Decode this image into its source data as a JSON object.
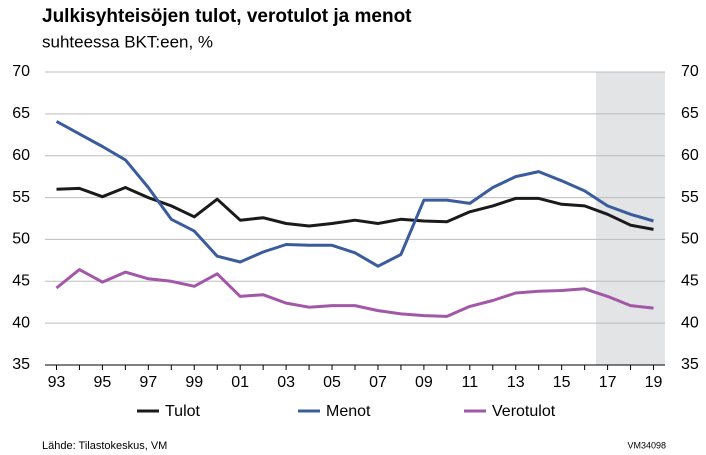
{
  "chart_data": {
    "type": "line",
    "title": "Julkisyhteisöjen tulot, verotulot ja menot",
    "subtitle": "suhteessa BKT:een, %",
    "source": "Lähde: Tilastokeskus, VM",
    "code": "VM34098",
    "categories": [
      "93",
      null,
      "95",
      null,
      "97",
      null,
      "99",
      null,
      "01",
      null,
      "03",
      null,
      "05",
      null,
      "07",
      null,
      "09",
      null,
      "11",
      null,
      "13",
      null,
      "15",
      null,
      "17",
      null,
      "19"
    ],
    "series": [
      {
        "name": "Tulot",
        "color": "#1a1a1a",
        "values": [
          56.0,
          56.1,
          55.1,
          56.2,
          55.0,
          54.0,
          52.7,
          54.8,
          52.3,
          52.6,
          51.9,
          51.6,
          51.9,
          52.3,
          51.9,
          52.4,
          52.2,
          52.1,
          53.3,
          54.0,
          54.9,
          54.9,
          54.2,
          54.0,
          53.0,
          51.7,
          51.2
        ]
      },
      {
        "name": "Menot",
        "color": "#3b5c9c",
        "values": [
          64.1,
          62.6,
          61.1,
          59.5,
          56.2,
          52.4,
          51.0,
          48.0,
          47.3,
          48.5,
          49.4,
          49.3,
          49.3,
          48.4,
          46.8,
          48.2,
          54.7,
          54.7,
          54.3,
          56.2,
          57.5,
          58.1,
          57.0,
          55.8,
          54.0,
          53.0,
          52.2
        ]
      },
      {
        "name": "Verotulot",
        "color": "#a257a8",
        "values": [
          44.2,
          46.4,
          44.9,
          46.1,
          45.3,
          45.0,
          44.4,
          45.9,
          43.2,
          43.4,
          42.4,
          41.9,
          42.1,
          42.1,
          41.5,
          41.1,
          40.9,
          40.8,
          42.0,
          42.7,
          43.6,
          43.8,
          43.9,
          44.1,
          43.2,
          42.1,
          41.8
        ]
      }
    ],
    "ylim": [
      35,
      70
    ],
    "yticks": [
      35,
      40,
      45,
      50,
      55,
      60,
      65,
      70
    ],
    "y2lim": [
      35,
      70
    ],
    "y2ticks": [
      35,
      40,
      45,
      50,
      55,
      60,
      65,
      70
    ],
    "grid": true,
    "legend": "bottom"
  }
}
